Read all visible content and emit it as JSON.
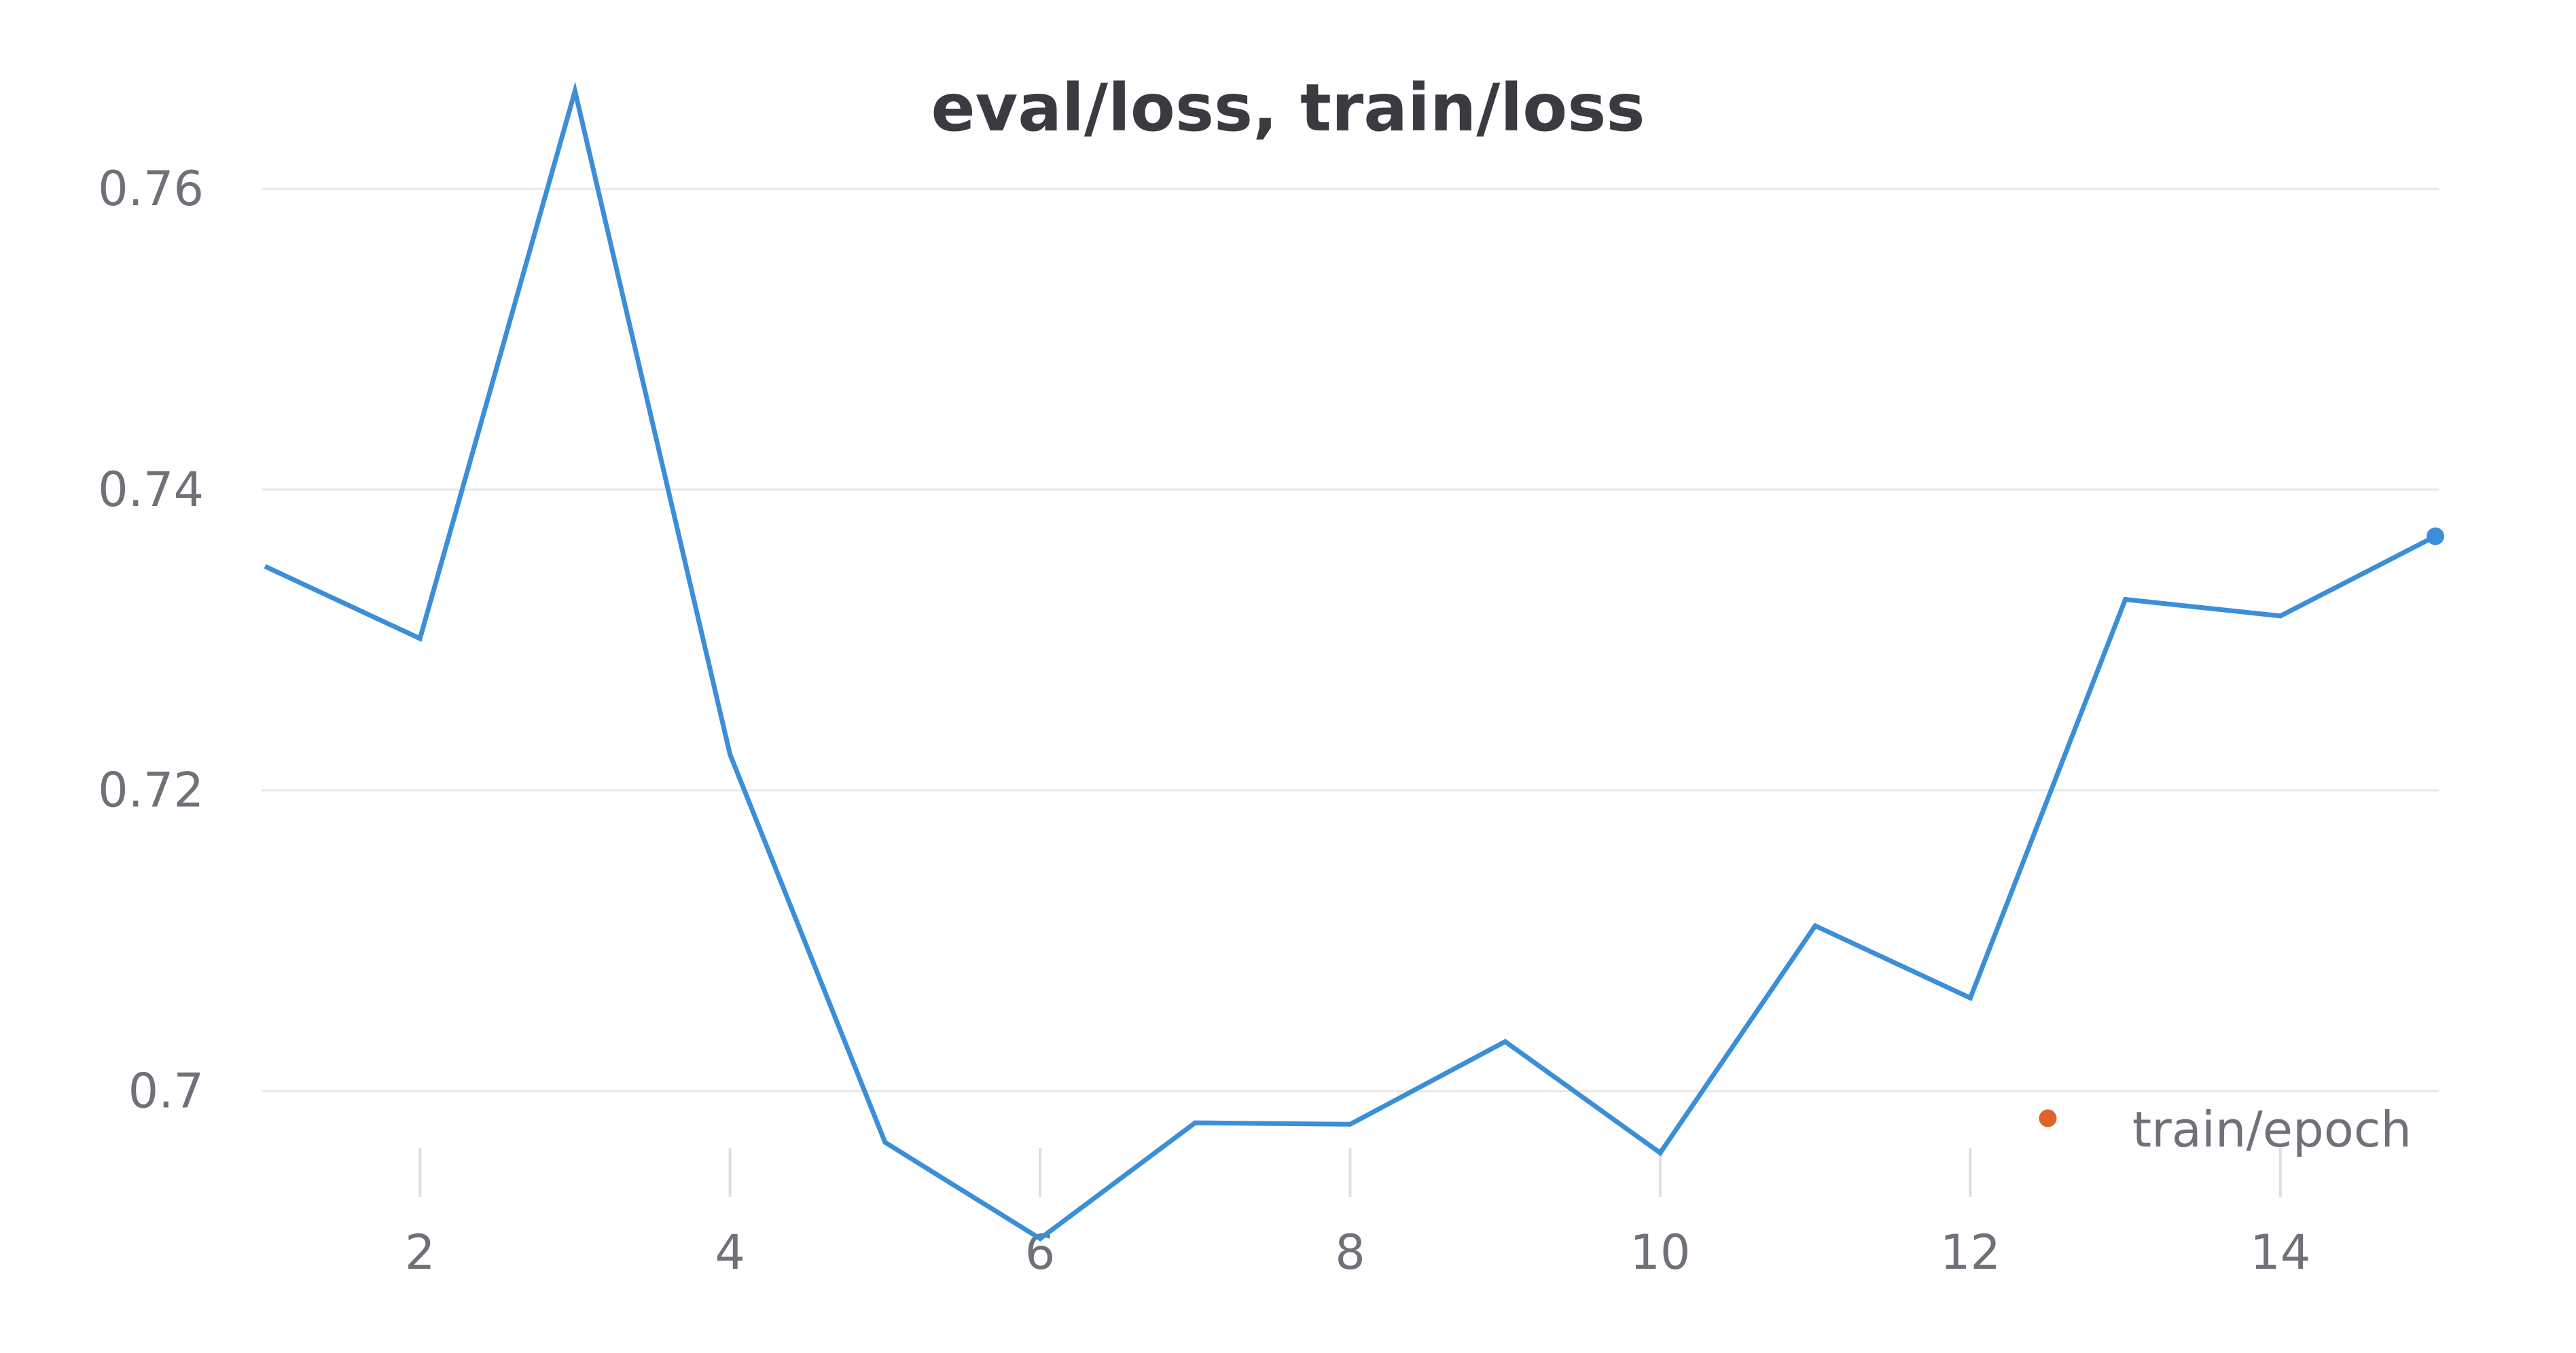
{
  "chart_data": {
    "type": "line",
    "title": "eval/loss, train/loss",
    "xlabel": "train/epoch",
    "ylabel": "",
    "xlim": [
      1,
      15
    ],
    "ylim": [
      0.69,
      0.7675
    ],
    "x_ticks": [
      2,
      4,
      6,
      8,
      10,
      12,
      14
    ],
    "y_ticks": [
      {
        "value": 0.7,
        "label": "0.7"
      },
      {
        "value": 0.72,
        "label": "0.72"
      },
      {
        "value": 0.74,
        "label": "0.74"
      },
      {
        "value": 0.76,
        "label": "0.76"
      }
    ],
    "grid": true,
    "series": [
      {
        "kind": "line",
        "color": "#3b8ed8",
        "x": [
          1,
          2,
          3,
          4,
          5,
          6,
          7,
          8,
          9,
          10,
          11,
          12,
          13,
          14,
          15
        ],
        "values": [
          0.7349,
          0.7301,
          0.7665,
          0.7224,
          0.6966,
          0.6902,
          0.6979,
          0.6978,
          0.7033,
          0.6959,
          0.711,
          0.7062,
          0.7327,
          0.7316,
          0.7369
        ],
        "endpoint_marker": true
      },
      {
        "kind": "scatter",
        "color": "#e0632b",
        "x": [
          12.5
        ],
        "values": [
          0.6982
        ]
      }
    ]
  }
}
